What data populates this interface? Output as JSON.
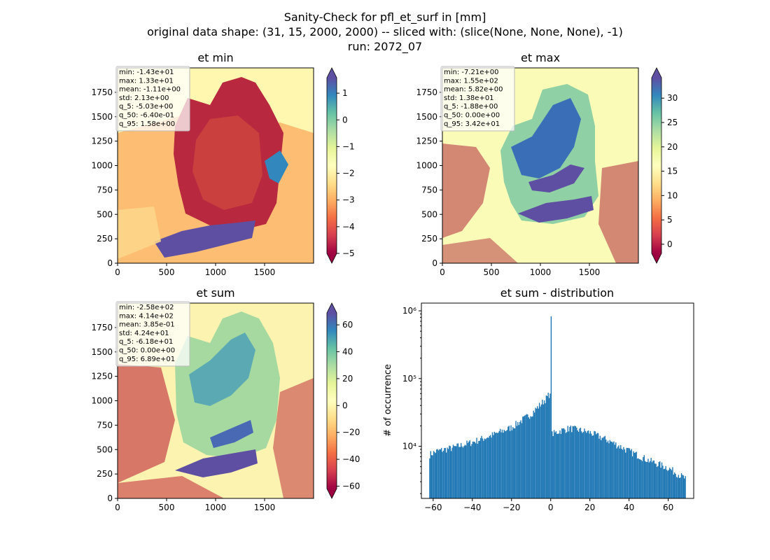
{
  "figure": {
    "title_lines": [
      "Sanity-Check for pfl_et_surf in [mm]",
      "original data shape: (31, 15, 2000, 2000) -- sliced with: (slice(None, None, None), -1)",
      "run: 2072_07"
    ]
  },
  "chart_data": [
    {
      "type": "heatmap",
      "title": "et min",
      "xlim": [
        0,
        2000
      ],
      "ylim": [
        0,
        2000
      ],
      "xticks": [
        0,
        500,
        1000,
        1500
      ],
      "yticks": [
        0,
        250,
        500,
        750,
        1000,
        1250,
        1500,
        1750
      ],
      "colormap": "Spectral",
      "colorbar": {
        "min": -5.0,
        "max": 1.58,
        "ticks": [
          1,
          0,
          -1,
          -2,
          -3,
          -4,
          -5
        ],
        "extend": "both"
      },
      "stats": [
        "min: -1.43e+01",
        "max: 1.33e+01",
        "mean: -1.11e+00",
        "std: 2.13e+00",
        "q_5: -5.03e+00",
        "q_50: -6.40e-01",
        "q_95: 1.58e+00"
      ]
    },
    {
      "type": "heatmap",
      "title": "et max",
      "xlim": [
        0,
        2000
      ],
      "ylim": [
        0,
        2000
      ],
      "xticks": [
        0,
        500,
        1000,
        1500
      ],
      "yticks": [
        0,
        250,
        500,
        750,
        1000,
        1250,
        1500,
        1750
      ],
      "colormap": "Spectral",
      "colorbar": {
        "min": -1.88,
        "max": 34.2,
        "ticks": [
          30,
          25,
          20,
          15,
          10,
          5,
          0
        ],
        "extend": "both"
      },
      "stats": [
        "min: -7.21e+00",
        "max: 1.55e+02",
        "mean: 5.82e+00",
        "std: 1.38e+01",
        "q_5: -1.88e+00",
        "q_50: 0.00e+00",
        "q_95: 3.42e+01"
      ]
    },
    {
      "type": "heatmap",
      "title": "et sum",
      "xlim": [
        0,
        2000
      ],
      "ylim": [
        0,
        2000
      ],
      "xticks": [
        0,
        500,
        1000,
        1500
      ],
      "yticks": [
        0,
        250,
        500,
        750,
        1000,
        1250,
        1500,
        1750
      ],
      "colormap": "Spectral",
      "colorbar": {
        "min": -61.8,
        "max": 68.9,
        "ticks": [
          60,
          40,
          20,
          0,
          -20,
          -40,
          -60
        ],
        "extend": "both"
      },
      "stats": [
        "min: -2.58e+02",
        "max: 4.14e+02",
        "mean: 3.85e-01",
        "std: 4.24e+01",
        "q_5: -6.18e+01",
        "q_50: 0.00e+00",
        "q_95: 6.89e+01"
      ]
    },
    {
      "type": "bar",
      "title": "et sum - distribution",
      "ylabel": "# of occurrence",
      "xlabel": "",
      "yscale": "log",
      "xlim": [
        -66,
        73
      ],
      "ylim": [
        1700,
        1300000
      ],
      "xticks": [
        -60,
        -40,
        -20,
        0,
        20,
        40,
        60
      ],
      "yticks": [
        {
          "value": 10000,
          "label": "10⁴"
        },
        {
          "value": 100000,
          "label": "10⁵"
        },
        {
          "value": 1000000,
          "label": "10⁶"
        }
      ],
      "bar_color": "#1f77b4",
      "bin_range": [
        -62,
        69
      ],
      "bin_width": 0.5,
      "profile": [
        {
          "x": -62,
          "y": 7500
        },
        {
          "x": -58,
          "y": 8500
        },
        {
          "x": -50,
          "y": 9500
        },
        {
          "x": -40,
          "y": 11500
        },
        {
          "x": -30,
          "y": 14500
        },
        {
          "x": -20,
          "y": 19000
        },
        {
          "x": -10,
          "y": 30000
        },
        {
          "x": -5,
          "y": 42000
        },
        {
          "x": -2,
          "y": 52000
        },
        {
          "x": -0.5,
          "y": 60000
        },
        {
          "x": 0,
          "y": 830000
        },
        {
          "x": 0.5,
          "y": 15000
        },
        {
          "x": 5,
          "y": 17000
        },
        {
          "x": 10,
          "y": 18500
        },
        {
          "x": 20,
          "y": 16000
        },
        {
          "x": 30,
          "y": 12000
        },
        {
          "x": 40,
          "y": 8500
        },
        {
          "x": 50,
          "y": 6200
        },
        {
          "x": 60,
          "y": 4800
        },
        {
          "x": 69,
          "y": 3300
        }
      ]
    }
  ]
}
